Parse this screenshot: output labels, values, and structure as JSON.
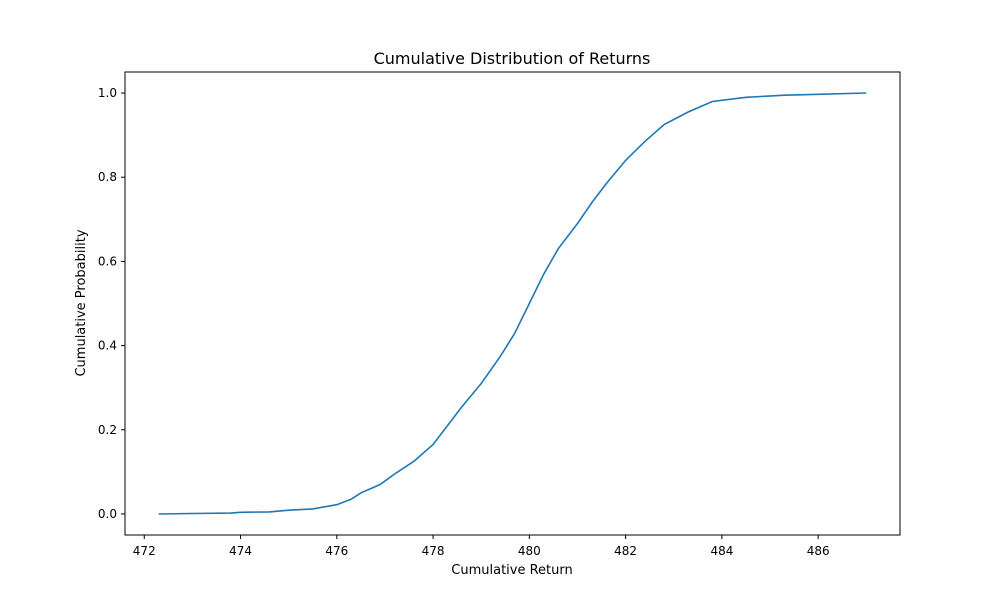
{
  "chart_data": {
    "type": "line",
    "title": "Cumulative Distribution of Returns",
    "xlabel": "Cumulative Return",
    "ylabel": "Cumulative Probability",
    "xlim": [
      471.6,
      487.7
    ],
    "ylim": [
      -0.05,
      1.05
    ],
    "xticks": [
      472,
      474,
      476,
      478,
      480,
      482,
      484,
      486
    ],
    "yticks": [
      0.0,
      0.2,
      0.4,
      0.6,
      0.8,
      1.0
    ],
    "line_color": "#1f77b4",
    "grid": false,
    "series": [
      {
        "points": [
          [
            472.3,
            0.0
          ],
          [
            473.0,
            0.001
          ],
          [
            473.8,
            0.002
          ],
          [
            474.0,
            0.004
          ],
          [
            474.6,
            0.005
          ],
          [
            475.0,
            0.009
          ],
          [
            475.5,
            0.012
          ],
          [
            476.0,
            0.022
          ],
          [
            476.3,
            0.035
          ],
          [
            476.5,
            0.05
          ],
          [
            476.9,
            0.07
          ],
          [
            477.2,
            0.095
          ],
          [
            477.6,
            0.125
          ],
          [
            478.0,
            0.165
          ],
          [
            478.3,
            0.21
          ],
          [
            478.6,
            0.255
          ],
          [
            479.0,
            0.31
          ],
          [
            479.4,
            0.375
          ],
          [
            479.7,
            0.43
          ],
          [
            480.0,
            0.5
          ],
          [
            480.3,
            0.57
          ],
          [
            480.6,
            0.63
          ],
          [
            481.0,
            0.69
          ],
          [
            481.3,
            0.74
          ],
          [
            481.6,
            0.785
          ],
          [
            482.0,
            0.84
          ],
          [
            482.4,
            0.885
          ],
          [
            482.8,
            0.925
          ],
          [
            483.3,
            0.955
          ],
          [
            483.8,
            0.98
          ],
          [
            484.5,
            0.99
          ],
          [
            485.3,
            0.995
          ],
          [
            486.0,
            0.997
          ],
          [
            487.0,
            1.0
          ]
        ]
      }
    ]
  }
}
